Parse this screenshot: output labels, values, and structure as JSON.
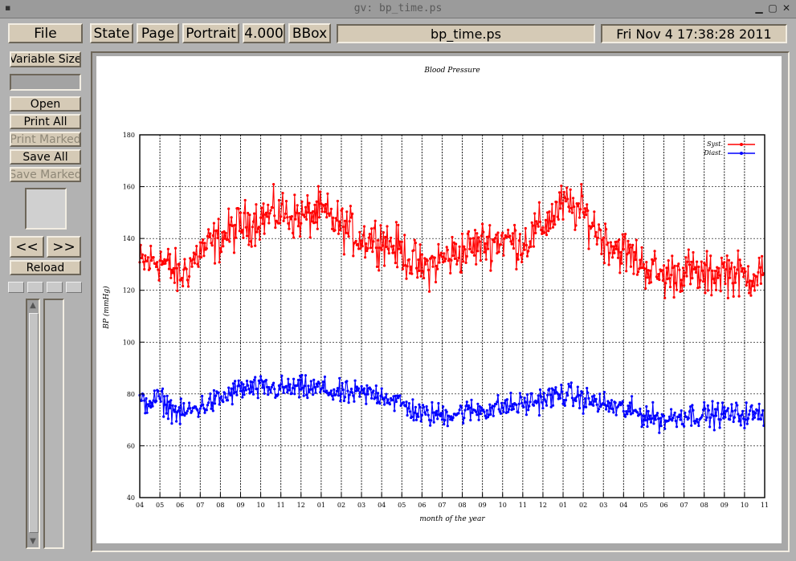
{
  "window": {
    "title": "gv: bp_time.ps"
  },
  "toolbar": {
    "file": "File",
    "state": "State",
    "page": "Page",
    "orientation": "Portrait",
    "scale": "4.000",
    "bbox": "BBox",
    "filename": "bp_time.ps",
    "date": "Fri Nov  4 17:38:28 2011"
  },
  "sidebar": {
    "size": "Variable Size",
    "open": "Open",
    "print_all": "Print All",
    "print_marked": "Print Marked",
    "save_all": "Save All",
    "save_marked": "Save Marked",
    "prev": "<<",
    "next": ">>",
    "reload": "Reload"
  },
  "chart_data": {
    "type": "line",
    "title": "Blood Pressure",
    "xlabel": "month of the year",
    "ylabel": "BP (mmHg)",
    "ylim": [
      40,
      180
    ],
    "yticks": [
      40,
      60,
      80,
      100,
      120,
      140,
      160,
      180
    ],
    "xtick_labels": [
      "04",
      "05",
      "06",
      "07",
      "08",
      "09",
      "10",
      "11",
      "12",
      "01",
      "02",
      "03",
      "04",
      "05",
      "06",
      "07",
      "08",
      "09",
      "10",
      "11",
      "12",
      "01",
      "02",
      "03",
      "04",
      "05",
      "06",
      "07",
      "08",
      "09",
      "10",
      "11"
    ],
    "grid": true,
    "legend_position": "top-right",
    "series": [
      {
        "name": "Syst.",
        "color": "#ff0000",
        "monthly_center": [
          130,
          132,
          125,
          135,
          140,
          145,
          148,
          150,
          148,
          150,
          145,
          140,
          140,
          135,
          128,
          132,
          135,
          138,
          140,
          138,
          145,
          153,
          150,
          140,
          135,
          130,
          125,
          128,
          125,
          128,
          125,
          128
        ]
      },
      {
        "name": "Diast.",
        "color": "#0000ff",
        "monthly_center": [
          76,
          78,
          72,
          75,
          78,
          82,
          82,
          82,
          82,
          82,
          80,
          80,
          80,
          76,
          72,
          72,
          73,
          74,
          75,
          76,
          78,
          80,
          78,
          76,
          74,
          72,
          70,
          72,
          72,
          72,
          72,
          72
        ]
      }
    ]
  }
}
